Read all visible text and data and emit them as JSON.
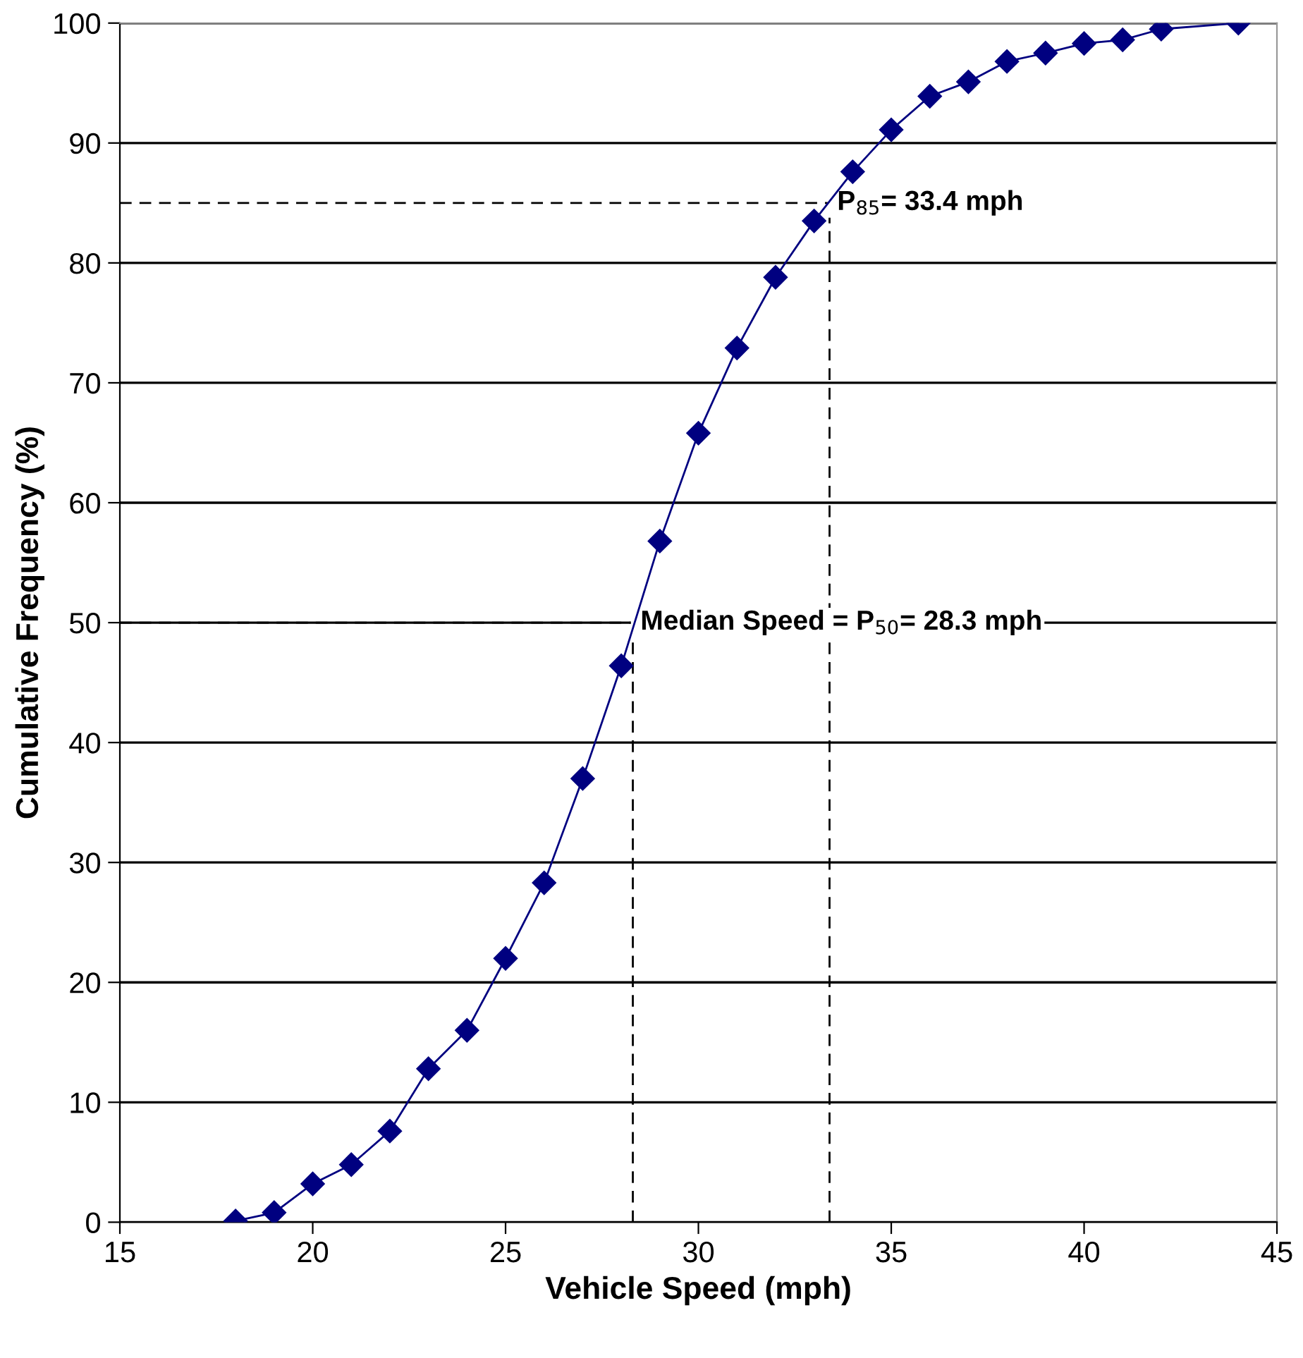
{
  "chart_data": {
    "type": "line",
    "xlabel": "Vehicle Speed (mph)",
    "ylabel": "Cumulative Frequency (%)",
    "x": [
      18,
      19,
      20,
      21,
      22,
      23,
      24,
      25,
      26,
      27,
      28,
      29,
      30,
      31,
      32,
      33,
      34,
      35,
      36,
      37,
      38,
      39,
      40,
      41,
      42,
      44
    ],
    "series": [
      {
        "color": "#000080",
        "values": [
          0.1,
          0.8,
          3.2,
          4.8,
          7.6,
          12.8,
          16,
          22,
          28.3,
          37,
          46.4,
          56.8,
          65.8,
          72.9,
          78.8,
          83.5,
          87.6,
          91.1,
          93.9,
          95.1,
          96.8,
          97.5,
          98.3,
          98.6,
          99.5,
          100
        ]
      }
    ],
    "marker": "diamond",
    "line_style": "solid",
    "grid": "y",
    "xlim": [
      15,
      45
    ],
    "xticks": [
      15,
      20,
      25,
      30,
      35,
      40,
      45
    ],
    "ylim": [
      0,
      100
    ],
    "yticks": [
      0,
      10,
      20,
      30,
      40,
      50,
      60,
      70,
      80,
      90,
      100
    ],
    "ref_lines": [
      {
        "axis": "y",
        "value": 85,
        "color": "#000000",
        "line_style": "dashed"
      },
      {
        "axis": "x",
        "value": 33.4,
        "color": "#000000",
        "line_style": "dashed"
      },
      {
        "axis": "y",
        "value": 50,
        "color": "#000000",
        "line_style": "dashed"
      },
      {
        "axis": "x",
        "value": 28.3,
        "color": "#000000",
        "line_style": "dashed"
      }
    ],
    "annotations": [
      {
        "text": "P$_{85}$= 33.4 mph",
        "x": 33.4,
        "y": 85
      },
      {
        "text": "Median Speed = P$_{50}$= 28.3 mph",
        "x": 28.3,
        "y": 50
      }
    ]
  }
}
